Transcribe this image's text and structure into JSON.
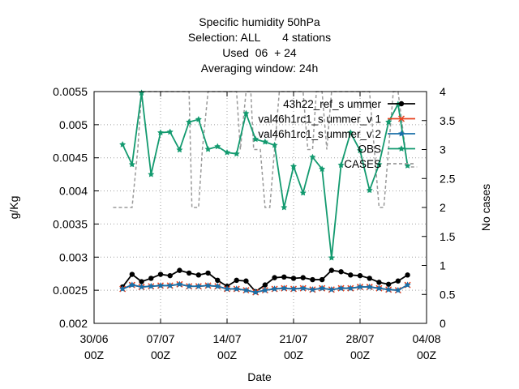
{
  "chart_data": {
    "type": "line",
    "title_lines": [
      "Specific humidity 50hPa",
      "Selection: ALL       4 stations",
      "Used  06  + 24",
      "Averaging window: 24h"
    ],
    "xlabel": "Date",
    "ylabel": "g/Kg",
    "y2label": "No cases",
    "xlim": [
      0,
      35
    ],
    "ylim": [
      0.002,
      0.0055
    ],
    "y2lim": [
      0,
      4
    ],
    "x_ticks": [
      {
        "x": 0,
        "line1": "30/06",
        "line2": "00Z"
      },
      {
        "x": 7,
        "line1": "07/07",
        "line2": "00Z"
      },
      {
        "x": 14,
        "line1": "14/07",
        "line2": "00Z"
      },
      {
        "x": 21,
        "line1": "21/07",
        "line2": "00Z"
      },
      {
        "x": 28,
        "line1": "28/07",
        "line2": "00Z"
      },
      {
        "x": 35,
        "line1": "04/08",
        "line2": "00Z"
      }
    ],
    "y_ticks": [
      "0.002",
      "0.0025",
      "0.003",
      "0.0035",
      "0.004",
      "0.0045",
      "0.005",
      "0.0055"
    ],
    "y2_ticks": [
      "0",
      "0.5",
      "1",
      "1.5",
      "2",
      "2.5",
      "3",
      "3.5",
      "4"
    ],
    "grid": true,
    "legend_position": "top-right",
    "series": [
      {
        "name": "43h22_ref_summer",
        "legend_label": "43h22_ref_s ummer",
        "color": "#000000",
        "marker": "circle",
        "axis": "y",
        "x": [
          3,
          4,
          5,
          6,
          7,
          8,
          9,
          10,
          11,
          12,
          13,
          14,
          15,
          16,
          17,
          18,
          19,
          20,
          21,
          22,
          23,
          24,
          25,
          26,
          27,
          28,
          29,
          30,
          31,
          32,
          33
        ],
        "values": [
          0.00255,
          0.00274,
          0.00263,
          0.00268,
          0.00274,
          0.00272,
          0.0028,
          0.00276,
          0.00273,
          0.00276,
          0.00265,
          0.00256,
          0.00265,
          0.00264,
          0.00248,
          0.00258,
          0.00269,
          0.0027,
          0.00268,
          0.00269,
          0.00266,
          0.00266,
          0.0028,
          0.00278,
          0.00273,
          0.00272,
          0.00268,
          0.00262,
          0.00259,
          0.00264,
          0.00273
        ]
      },
      {
        "name": "val46h1rc1_summer_v1",
        "legend_label": "val46h1rc1_s ummer_v 1",
        "color": "#e8421f",
        "marker": "x",
        "axis": "y",
        "x": [
          3,
          4,
          5,
          6,
          7,
          8,
          9,
          10,
          11,
          12,
          13,
          14,
          15,
          16,
          17,
          18,
          19,
          20,
          21,
          22,
          23,
          24,
          25,
          26,
          27,
          28,
          29,
          30,
          31,
          32,
          33
        ],
        "values": [
          0.00252,
          0.00258,
          0.00255,
          0.00256,
          0.00257,
          0.00257,
          0.00259,
          0.00256,
          0.00256,
          0.00257,
          0.00256,
          0.00252,
          0.00252,
          0.0025,
          0.00247,
          0.0025,
          0.00252,
          0.00253,
          0.00252,
          0.00253,
          0.00251,
          0.00253,
          0.00251,
          0.00253,
          0.00253,
          0.00255,
          0.00255,
          0.00253,
          0.00251,
          0.0025,
          0.00258
        ]
      },
      {
        "name": "val46h1rc1_summer_v2",
        "legend_label": "val46h1rc1_s ummer_v 2",
        "color": "#1a6fa8",
        "marker": "star",
        "axis": "y",
        "x": [
          3,
          4,
          5,
          6,
          7,
          8,
          9,
          10,
          11,
          12,
          13,
          14,
          15,
          16,
          17,
          18,
          19,
          20,
          21,
          22,
          23,
          24,
          25,
          26,
          27,
          28,
          29,
          30,
          31,
          32,
          33
        ],
        "values": [
          0.00252,
          0.00258,
          0.00255,
          0.00256,
          0.00257,
          0.00257,
          0.00259,
          0.00256,
          0.00256,
          0.00257,
          0.00256,
          0.00252,
          0.00252,
          0.0025,
          0.00247,
          0.0025,
          0.00252,
          0.00253,
          0.00252,
          0.00253,
          0.00251,
          0.00253,
          0.00251,
          0.00253,
          0.00253,
          0.00255,
          0.00255,
          0.00253,
          0.00251,
          0.0025,
          0.00258
        ]
      },
      {
        "name": "OBS",
        "legend_label": "OBS",
        "color": "#139a6f",
        "marker": "star",
        "axis": "y",
        "x": [
          3,
          4,
          5,
          6,
          7,
          8,
          9,
          10,
          11,
          12,
          13,
          14,
          15,
          16,
          17,
          18,
          19,
          20,
          21,
          22,
          23,
          24,
          25,
          26,
          27,
          28,
          29,
          30,
          31,
          32,
          33
        ],
        "values": [
          0.0047,
          0.0044,
          0.00548,
          0.00425,
          0.00488,
          0.00489,
          0.00462,
          0.00504,
          0.00508,
          0.00463,
          0.00467,
          0.00458,
          0.00456,
          0.00517,
          0.00478,
          0.00474,
          0.00469,
          0.00375,
          0.00437,
          0.00397,
          0.00451,
          0.00433,
          0.00299,
          0.00439,
          0.00488,
          0.00461,
          0.00401,
          0.0044,
          0.00504,
          0.00531,
          0.00438
        ]
      },
      {
        "name": "CASES",
        "legend_label": "CASES",
        "color": "#9a9a9a",
        "marker": "none",
        "dashed": true,
        "axis": "y2",
        "x": [
          2,
          3,
          3.5,
          4,
          4.6,
          5,
          10,
          10.3,
          11,
          11.4,
          12,
          15,
          15.4,
          16,
          16.5,
          16.8,
          17.5,
          18,
          18.5,
          19,
          19.5,
          20,
          21.5,
          22,
          22.5,
          23,
          23.4,
          24,
          24.5,
          25,
          29,
          29.5,
          30,
          30.5,
          31,
          31.5,
          32,
          33,
          34
        ],
        "values": [
          2,
          2,
          2,
          2,
          3,
          4,
          4,
          2,
          2,
          3,
          4,
          4,
          3,
          4,
          4,
          3,
          3,
          2,
          2,
          3,
          4,
          4,
          4,
          4,
          3,
          3,
          4,
          4,
          3,
          4,
          4,
          3,
          2,
          2,
          3,
          4,
          4,
          2.7,
          2.7
        ]
      }
    ]
  }
}
